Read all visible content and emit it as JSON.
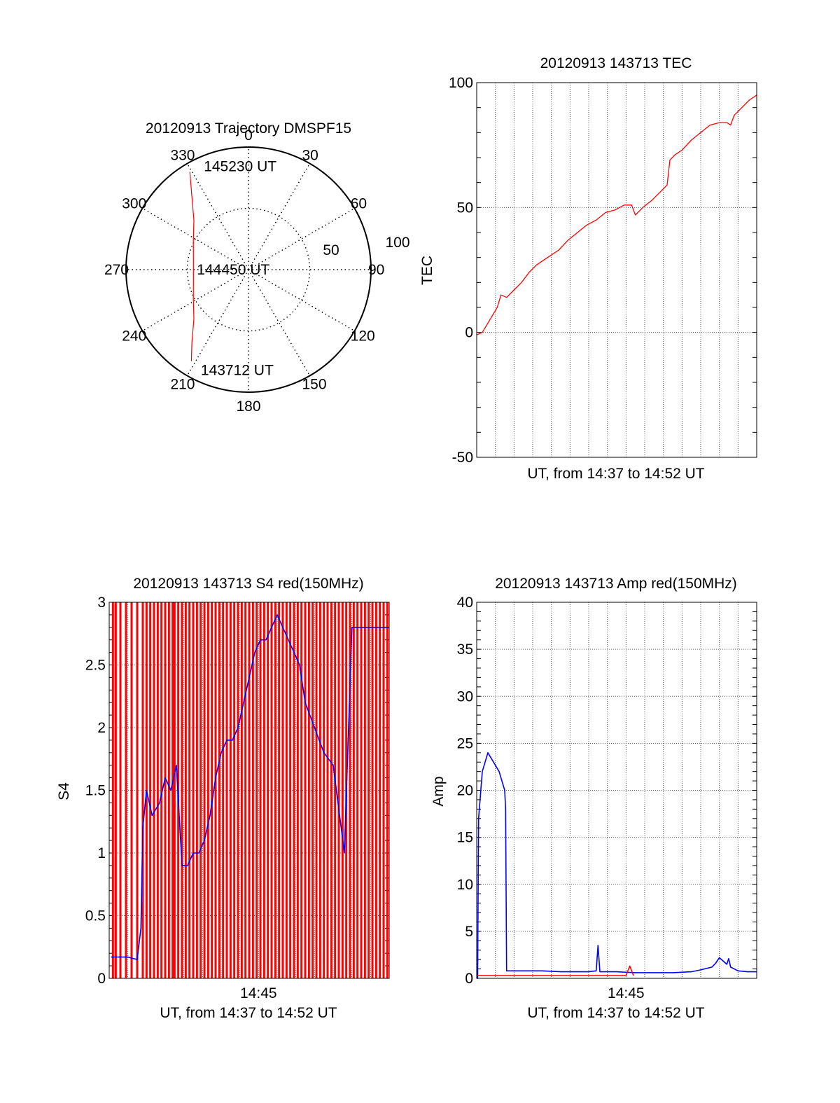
{
  "chart_data": [
    {
      "type": "polar",
      "title": "20120913 Trajectory DMSPF15",
      "azimuth_labels": [
        "0",
        "30",
        "60",
        "90",
        "120",
        "150",
        "180",
        "210",
        "240",
        "270",
        "300",
        "330"
      ],
      "radial_labels": [
        "50",
        "100"
      ],
      "radial_range": [
        0,
        100
      ],
      "grid": true,
      "series": [
        {
          "color": "#ff0000",
          "points": [
            [
              329,
              93
            ],
            [
              322,
              75
            ],
            [
              312,
              60
            ],
            [
              298,
              51
            ],
            [
              282,
              46
            ],
            [
              270,
              45
            ],
            [
              258,
              46
            ],
            [
              242,
              51
            ],
            [
              228,
              60
            ],
            [
              218,
              75
            ],
            [
              212,
              88
            ]
          ]
        }
      ],
      "annotations": [
        {
          "text": "145230 UT",
          "az": 335,
          "r": 93
        },
        {
          "text": "144450 UT",
          "az": 270,
          "r": 45
        },
        {
          "text": "143712 UT",
          "az": 207,
          "r": 92
        }
      ]
    },
    {
      "type": "line",
      "title": "20120913 143713 TEC",
      "xlabel": "UT, from 14:37 to 14:52 UT",
      "ylabel": "TEC",
      "xlim": [
        0,
        15
      ],
      "ylim": [
        -50,
        100
      ],
      "yticks": [
        "-50",
        "0",
        "50",
        "100"
      ],
      "grid": true,
      "series": [
        {
          "color": "#ff0000",
          "x": [
            0,
            0.3,
            0.7,
            1.1,
            1.3,
            1.6,
            2.0,
            2.4,
            2.8,
            3.2,
            3.6,
            4.0,
            4.4,
            4.9,
            5.4,
            5.9,
            6.4,
            6.9,
            7.4,
            7.9,
            8.3,
            8.45,
            8.5,
            8.9,
            9.4,
            9.8,
            10.2,
            10.35,
            10.6,
            11.0,
            11.5,
            12.0,
            12.5,
            13.0,
            13.4,
            13.6,
            13.8,
            14.2,
            14.6,
            15.0
          ],
          "y": [
            -1,
            0,
            5,
            10,
            15,
            14,
            17,
            20,
            24,
            27,
            29,
            31,
            33,
            37,
            40,
            43,
            45,
            48,
            49,
            51,
            51,
            48,
            47,
            50,
            53,
            56,
            59,
            69,
            71,
            73,
            77,
            80,
            83,
            84,
            84,
            83,
            87,
            90,
            93,
            95
          ]
        }
      ]
    },
    {
      "type": "line",
      "title": "20120913 143713 S4 red(150MHz)",
      "xlabel": "UT, from 14:37 to 14:52 UT",
      "ylabel": "S4",
      "xlim": [
        0,
        15
      ],
      "ylim": [
        0,
        3
      ],
      "yticks": [
        "0",
        "0.5",
        "1",
        "1.5",
        "2",
        "2.5",
        "3"
      ],
      "xticks": [
        "14:45"
      ],
      "grid": true,
      "series": [
        {
          "color": "#ff0000",
          "kind": "spikes",
          "x": [
            0.2,
            0.35,
            0.6,
            0.9,
            1.2,
            1.5,
            1.8,
            2.0,
            2.2,
            2.4,
            2.6,
            2.8,
            3.0,
            3.2,
            3.4,
            3.5,
            3.7,
            3.9,
            4.1,
            4.3,
            4.5,
            4.7,
            4.9,
            5.1,
            5.3,
            5.5,
            5.7,
            5.9,
            6.1,
            6.3,
            6.5,
            6.7,
            6.9,
            7.1,
            7.3,
            7.5,
            7.7,
            7.9,
            8.1,
            8.3,
            8.5,
            8.7,
            8.9,
            9.1,
            9.3,
            9.5,
            9.7,
            9.9,
            10.1,
            10.3,
            10.5,
            10.7,
            10.9,
            11.1,
            11.3,
            11.5,
            11.7,
            11.9,
            12.1,
            12.3,
            12.5,
            12.7,
            12.9,
            13.1,
            13.3,
            13.5,
            13.7,
            13.9,
            14.1,
            14.3,
            14.5,
            14.7,
            14.9
          ],
          "y": [
            3,
            3,
            3,
            3,
            3,
            3,
            3,
            3,
            3,
            3,
            3,
            3,
            3,
            3,
            3,
            3,
            3,
            3,
            3,
            3,
            3,
            3,
            3,
            3,
            3,
            3,
            3,
            3,
            3,
            3,
            3,
            3,
            3,
            3,
            3,
            3,
            3,
            3,
            3,
            3,
            3,
            3,
            3,
            3,
            3,
            3,
            3,
            3,
            3,
            3,
            3,
            3,
            3,
            3,
            3,
            3,
            3,
            3,
            3,
            3,
            3,
            3,
            3,
            3,
            3,
            3,
            3,
            3,
            3,
            3,
            3,
            3,
            3
          ]
        },
        {
          "color": "#0000ff",
          "x": [
            0.1,
            0.5,
            1.0,
            1.5,
            1.7,
            1.8,
            2.0,
            2.3,
            2.7,
            3.0,
            3.3,
            3.6,
            3.9,
            4.2,
            4.5,
            4.8,
            5.1,
            5.4,
            5.7,
            6.0,
            6.3,
            6.6,
            6.9,
            7.2,
            7.5,
            7.8,
            8.1,
            8.4,
            8.7,
            9.0,
            9.3,
            9.6,
            9.9,
            10.2,
            10.5,
            11.0,
            11.5,
            12.0,
            12.6,
            13.0,
            13.5,
            14.0,
            14.5,
            15.0
          ],
          "y": [
            0.17,
            0.17,
            0.17,
            0.15,
            0.4,
            1.2,
            1.5,
            1.3,
            1.4,
            1.6,
            1.5,
            1.7,
            0.9,
            0.9,
            1.0,
            1.0,
            1.1,
            1.3,
            1.6,
            1.8,
            1.9,
            1.9,
            2.0,
            2.2,
            2.4,
            2.6,
            2.7,
            2.7,
            2.8,
            2.9,
            2.8,
            2.7,
            2.6,
            2.5,
            2.2,
            2.0,
            1.8,
            1.7,
            1.0,
            2.8,
            2.8,
            2.8,
            2.8,
            2.8
          ]
        }
      ]
    },
    {
      "type": "line",
      "title": "20120913 143713 Amp red(150MHz)",
      "xlabel": "UT, from 14:37 to 14:52 UT",
      "ylabel": "Amp",
      "xlim": [
        0,
        15
      ],
      "ylim": [
        0,
        40
      ],
      "yticks": [
        "0",
        "5",
        "10",
        "15",
        "20",
        "25",
        "30",
        "35",
        "40"
      ],
      "xticks": [
        "14:45"
      ],
      "grid": true,
      "series": [
        {
          "color": "#0000ff",
          "x": [
            0,
            0.05,
            0.1,
            0.3,
            0.6,
            0.9,
            1.2,
            1.5,
            1.55,
            1.6,
            2.5,
            3.5,
            4.5,
            5.5,
            6.0,
            6.4,
            6.5,
            6.6,
            7.5,
            8.5,
            9.5,
            10.5,
            11.5,
            12.0,
            12.6,
            12.8,
            13.0,
            13.4,
            13.5,
            13.6,
            14.0,
            14.5,
            15.0
          ],
          "y": [
            0,
            0,
            17,
            22,
            24,
            23,
            22,
            20,
            18,
            0.8,
            0.8,
            0.8,
            0.7,
            0.7,
            0.7,
            0.8,
            3.5,
            0.7,
            0.7,
            0.6,
            0.6,
            0.6,
            0.7,
            0.9,
            1.2,
            1.6,
            2.2,
            1.5,
            2.1,
            1.2,
            0.8,
            0.7,
            0.7
          ]
        },
        {
          "color": "#ff0000",
          "x": [
            0,
            0.5,
            1.0,
            1.5,
            8.0,
            8.2,
            8.4
          ],
          "y": [
            0.3,
            0.3,
            0.3,
            0.3,
            0.3,
            1.3,
            0.3
          ]
        }
      ]
    }
  ]
}
